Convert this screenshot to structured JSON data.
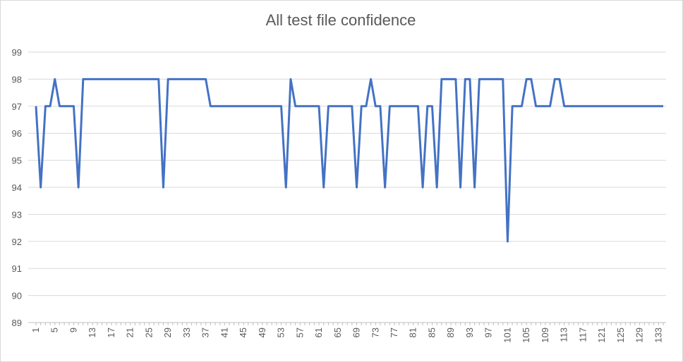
{
  "chart_data": {
    "type": "line",
    "title": "All test file confidence",
    "xlabel": "",
    "ylabel": "",
    "ylim": [
      89,
      99
    ],
    "yticks": [
      89,
      90,
      91,
      92,
      93,
      94,
      95,
      96,
      97,
      98,
      99
    ],
    "xlim": [
      1,
      134
    ],
    "xtick_labels": [
      "1",
      "5",
      "9",
      "13",
      "17",
      "21",
      "25",
      "29",
      "33",
      "37",
      "41",
      "45",
      "49",
      "53",
      "57",
      "61",
      "65",
      "69",
      "73",
      "77",
      "81",
      "85",
      "89",
      "93",
      "97",
      "101",
      "105",
      "109",
      "113",
      "117",
      "121",
      "125",
      "129",
      "133"
    ],
    "grid": true,
    "legend": "none",
    "series": [
      {
        "color": "#4472c4",
        "values": [
          97,
          94,
          97,
          97,
          98,
          97,
          97,
          97,
          97,
          94,
          98,
          98,
          98,
          98,
          98,
          98,
          98,
          98,
          98,
          98,
          98,
          98,
          98,
          98,
          98,
          98,
          98,
          94,
          98,
          98,
          98,
          98,
          98,
          98,
          98,
          98,
          98,
          97,
          97,
          97,
          97,
          97,
          97,
          97,
          97,
          97,
          97,
          97,
          97,
          97,
          97,
          97,
          97,
          94,
          98,
          97,
          97,
          97,
          97,
          97,
          97,
          94,
          97,
          97,
          97,
          97,
          97,
          97,
          94,
          97,
          97,
          98,
          97,
          97,
          94,
          97,
          97,
          97,
          97,
          97,
          97,
          97,
          94,
          97,
          97,
          94,
          98,
          98,
          98,
          98,
          94,
          98,
          98,
          94,
          98,
          98,
          98,
          98,
          98,
          98,
          92,
          97,
          97,
          97,
          98,
          98,
          97,
          97,
          97,
          97,
          98,
          98,
          97,
          97,
          97,
          97,
          97,
          97,
          97,
          97,
          97,
          97,
          97,
          97,
          97,
          97,
          97,
          97,
          97,
          97,
          97,
          97,
          97,
          97
        ]
      }
    ]
  }
}
